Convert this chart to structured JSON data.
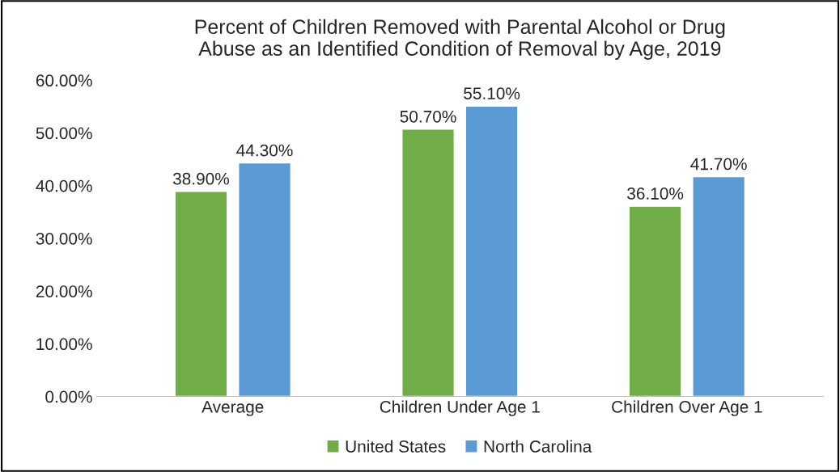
{
  "chart_data": {
    "type": "bar",
    "title": "Percent of Children Removed with Parental Alcohol or Drug\nAbuse as an Identified Condition of Removal by Age, 2019",
    "categories": [
      "Average",
      "Children Under Age 1",
      "Children Over Age 1"
    ],
    "series": [
      {
        "name": "United States",
        "color": "#70ad47",
        "values": [
          38.9,
          50.7,
          36.1
        ],
        "value_labels": [
          "38.90%",
          "50.70%",
          "36.10%"
        ]
      },
      {
        "name": "North Carolina",
        "color": "#5b9bd5",
        "values": [
          44.3,
          55.1,
          41.7
        ],
        "value_labels": [
          "44.30%",
          "55.10%",
          "41.70%"
        ]
      }
    ],
    "ylim": [
      0,
      60
    ],
    "yticks": [
      {
        "value": 0,
        "label": "0.00%"
      },
      {
        "value": 10,
        "label": "10.00%"
      },
      {
        "value": 20,
        "label": "20.00%"
      },
      {
        "value": 30,
        "label": "30.00%"
      },
      {
        "value": 40,
        "label": "40.00%"
      },
      {
        "value": 50,
        "label": "50.00%"
      },
      {
        "value": 60,
        "label": "60.00%"
      }
    ],
    "grid": false,
    "legend": "bottom"
  }
}
